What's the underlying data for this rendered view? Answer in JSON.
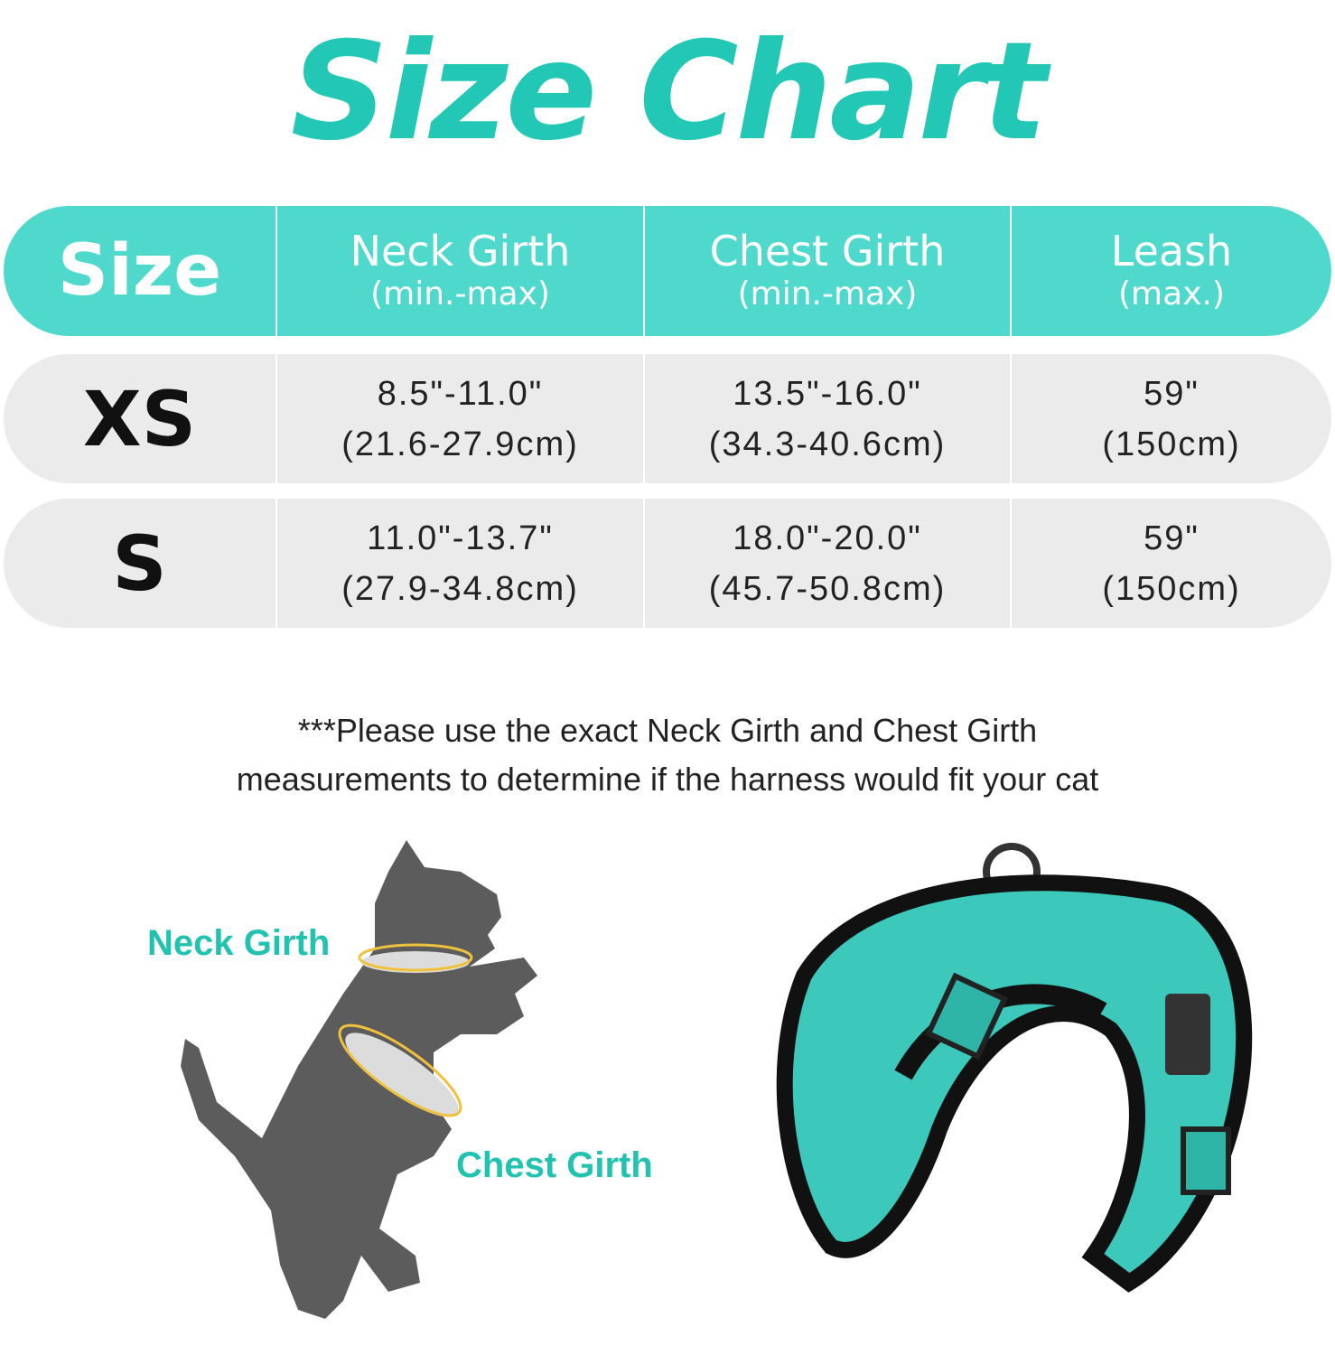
{
  "title": "Size Chart",
  "colors": {
    "accent": "#22c7b5",
    "header_bg": "#4fd9cd",
    "row_bg": "#ebebeb",
    "cat": "#5c5c5c",
    "harness": "#3cc9bc"
  },
  "table": {
    "headers": [
      {
        "main": "Size",
        "sub": ""
      },
      {
        "main": "Neck Girth",
        "sub": "(min.-max)"
      },
      {
        "main": "Chest Girth",
        "sub": "(min.-max)"
      },
      {
        "main": "Leash",
        "sub": "(max.)"
      }
    ],
    "rows": [
      {
        "size": "XS",
        "neck": "8.5\"-11.0\"",
        "neck_cm": "(21.6-27.9cm)",
        "chest": "13.5\"-16.0\"",
        "chest_cm": "(34.3-40.6cm)",
        "leash": "59\"",
        "leash_cm": "(150cm)"
      },
      {
        "size": "S",
        "neck": "11.0\"-13.7\"",
        "neck_cm": "(27.9-34.8cm)",
        "chest": "18.0\"-20.0\"",
        "chest_cm": "(45.7-50.8cm)",
        "leash": "59\"",
        "leash_cm": "(150cm)"
      }
    ]
  },
  "note": {
    "line1": "***Please use the exact Neck Girth and Chest Girth",
    "line2": "measurements to determine if the harness would fit your cat"
  },
  "illustration": {
    "neck_label": "Neck Girth",
    "chest_label": "Chest Girth"
  }
}
